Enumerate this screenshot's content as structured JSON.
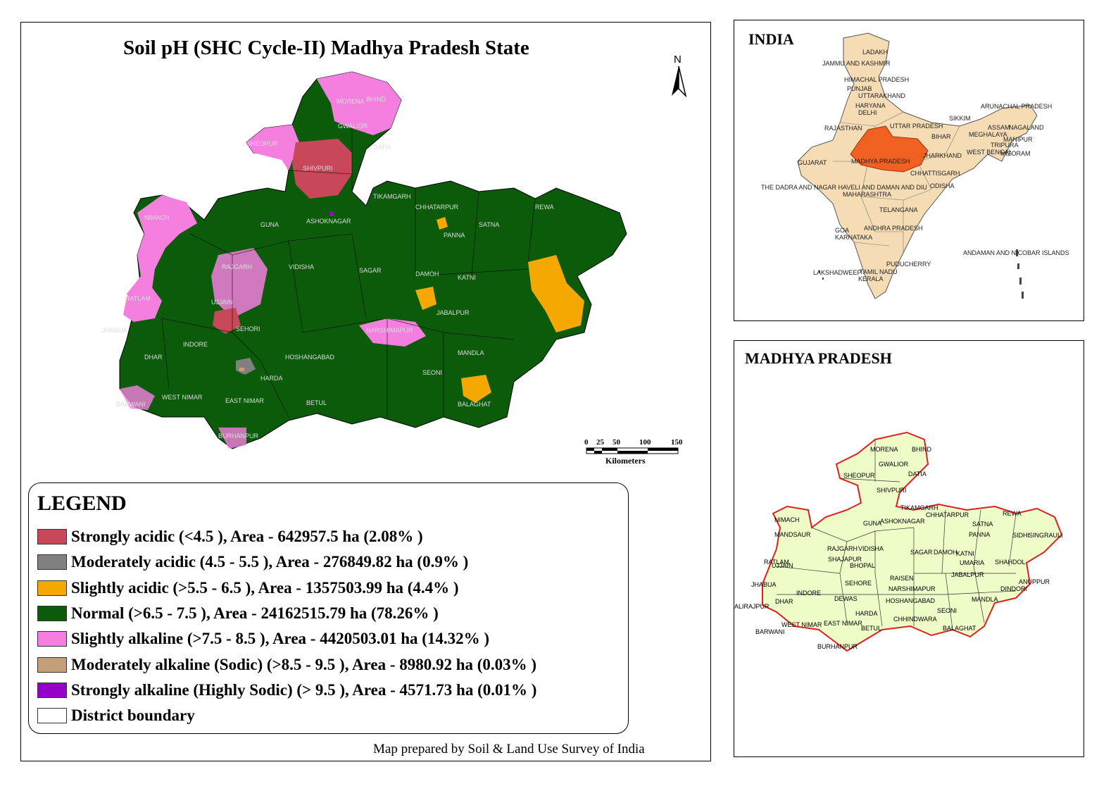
{
  "main_map": {
    "title": "Soil pH  (SHC Cycle-II)  Madhya Pradesh State",
    "north_label": "N",
    "scale": {
      "ticks": [
        "0",
        "25",
        "50",
        "100",
        "150"
      ],
      "unit": "Kilometers"
    },
    "district_labels": [
      "MORENA",
      "BHIND",
      "GWALIOR",
      "DATIA",
      "SHEOPUR",
      "SHIVPURI",
      "TIKAMGARH",
      "CHHATARPUR",
      "REWA",
      "NIMACH",
      "GUNA",
      "ASHOKNAGAR",
      "PANNA",
      "SATNA",
      "SAGAR",
      "DAMOH",
      "KATNI",
      "RAJGARH",
      "VIDISHA",
      "RATLAM",
      "UJJAIN",
      "SEHORI",
      "INDORE",
      "JABALPUR",
      "NARSHIMAPUR",
      "JHABUA",
      "DHAR",
      "HOSHANGABAD",
      "MANDLA",
      "HARDA",
      "SEONI",
      "BARWANI",
      "WEST NIMAR",
      "EAST NIMAR",
      "BETUL",
      "BALAGHAT",
      "BURHANPUR"
    ],
    "credit": "Map prepared by Soil & Land Use Survey of India"
  },
  "legend": {
    "heading": "LEGEND",
    "items": [
      {
        "label": "Strongly acidic  (<4.5 ), Area - 642957.5  ha (2.08% )",
        "color": "#c8485a",
        "area_ha": 642957.5,
        "percent": 2.08
      },
      {
        "label": "Moderately acidic  (4.5 - 5.5 ), Area - 276849.82  ha (0.9% )",
        "color": "#808080",
        "area_ha": 276849.82,
        "percent": 0.9
      },
      {
        "label": "Slightly acidic  (>5.5 - 6.5 ), Area - 1357503.99  ha (4.4% )",
        "color": "#f5a800",
        "area_ha": 1357503.99,
        "percent": 4.4
      },
      {
        "label": "Normal  (>6.5 - 7.5 ), Area - 24162515.79  ha (78.26% )",
        "color": "#0b5b0b",
        "area_ha": 24162515.79,
        "percent": 78.26
      },
      {
        "label": "Slightly alkaline  (>7.5 - 8.5 ), Area - 4420503.01  ha (14.32% )",
        "color": "#f47fdf",
        "area_ha": 4420503.01,
        "percent": 14.32
      },
      {
        "label": "Moderately alkaline (Sodic)  (>8.5 - 9.5 ), Area - 8980.92  ha (0.03% )",
        "color": "#c4a07a",
        "area_ha": 8980.92,
        "percent": 0.03
      },
      {
        "label": "Strongly alkaline (Highly Sodic)  (> 9.5 ), Area - 4571.73  ha (0.01% )",
        "color": "#9400c8",
        "area_ha": 4571.73,
        "percent": 0.01
      },
      {
        "label": "District boundary",
        "color": "#ffffff",
        "area_ha": null,
        "percent": null
      }
    ]
  },
  "india_inset": {
    "title": "INDIA",
    "labels": [
      "LADAKH",
      "JAMMU AND KASHMIR",
      "HIMACHAL PRADESH",
      "PUNJAB",
      "UTTARAKHAND",
      "HARYANA",
      "DELHI",
      "RAJASTHAN",
      "UTTAR PRADESH",
      "SIKKIM",
      "ARUNACHAL PRADESH",
      "ASSAM",
      "NAGALAND",
      "BIHAR",
      "MEGHALAYA",
      "MANIPUR",
      "TRIPURA",
      "MIZORAM",
      "WEST BENGAL",
      "JHARKHAND",
      "GUJARAT",
      "MADHYA PRADESH",
      "CHHATTISGARH",
      "THE DADRA AND NAGAR HAVELI AND DAMAN AND DIU",
      "ODISHA",
      "MAHARASHTRA",
      "TELANGANA",
      "GOA",
      "ANDHRA PRADESH",
      "KARNATAKA",
      "ANDAMAN AND NICOBAR ISLANDS",
      "PUDUCHERRY",
      "LAKSHADWEEP",
      "TAMIL NADU",
      "KERALA"
    ],
    "colors": {
      "states": "#f5dcb4",
      "highlight": "#f06020"
    }
  },
  "mp_inset": {
    "title": "MADHYA PRADESH",
    "labels": [
      "MORENA",
      "BHIND",
      "GWALIOR",
      "DATIA",
      "SHEOPUR",
      "SHIVPURI",
      "TIKAMGARH",
      "ASHOKNAGAR",
      "CHHATARPUR",
      "REWA",
      "SATNA",
      "SIDHI",
      "SINGRAULI",
      "NIMACH",
      "GUNA",
      "PANNA",
      "MANDSAUR",
      "RAJGARH",
      "VIDISHA",
      "SAGAR",
      "DAMOH",
      "KATNI",
      "UMARIA",
      "SHAHDOL",
      "RATLAM",
      "UJJAIN",
      "SHAJAPUR",
      "BHOPAL",
      "RAISEN",
      "JABALPUR",
      "ANUPPUR",
      "JHABUA",
      "INDORE",
      "SEHORE",
      "NARSHIMAPUR",
      "DINDORI",
      "ALIRAJPUR",
      "DHAR",
      "DEWAS",
      "HOSHANGABAD",
      "MANDLA",
      "HARDA",
      "CHHINDWARA",
      "SEONI",
      "WEST NIMAR",
      "EAST NIMAR",
      "BETUL",
      "BALAGHAT",
      "BARWANI",
      "BURHANPUR"
    ],
    "colors": {
      "fill": "#eefcc8",
      "boundary": "#e02020"
    }
  }
}
